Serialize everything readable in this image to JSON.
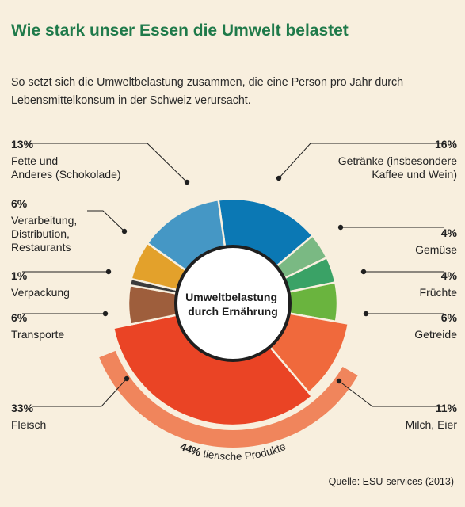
{
  "title": "Wie stark unser Essen die Umwelt belastet",
  "subtitle": "So setzt sich die Umweltbelastung zusammen, die eine Person pro Jahr durch Lebensmittelkonsum in der Schweiz verursacht.",
  "center_label": [
    "Umweltbelastung",
    "durch Ernährung"
  ],
  "animal_band": {
    "value": "44%",
    "label": "tierische Produkte",
    "color": "#f0855c"
  },
  "source": "Quelle: ESU-services (2013)",
  "chart_data": {
    "type": "pie",
    "title": "Umweltbelastung durch Ernährung",
    "unit": "%",
    "slices": [
      {
        "label": "Getränke (insbesondere Kaffee und Wein)",
        "display": "Getränke (insbesondere\nKaffee und Wein)",
        "value": 16,
        "color": "#0b78b4"
      },
      {
        "label": "Gemüse",
        "display": "Gemüse",
        "value": 4,
        "color": "#7ab983"
      },
      {
        "label": "Früchte",
        "display": "Früchte",
        "value": 4,
        "color": "#3aa266"
      },
      {
        "label": "Getreide",
        "display": "Getreide",
        "value": 6,
        "color": "#6ab43e"
      },
      {
        "label": "Milch, Eier",
        "display": "Milch, Eier",
        "value": 11,
        "color": "#f0693c"
      },
      {
        "label": "Fleisch",
        "display": "Fleisch",
        "value": 33,
        "color": "#ea4425"
      },
      {
        "label": "Transporte",
        "display": "Transporte",
        "value": 6,
        "color": "#9e5e3c"
      },
      {
        "label": "Verpackung",
        "display": "Verpackung",
        "value": 1,
        "color": "#3b3b3b"
      },
      {
        "label": "Verarbeitung, Distribution, Restaurants",
        "display": "Verarbeitung,\nDistribution,\nRestaurants",
        "value": 6,
        "color": "#e3a12b"
      },
      {
        "label": "Fette und Anderes (Schokolade)",
        "display": "Fette und\nAnderes (Schokolade)",
        "value": 13,
        "color": "#4597c5"
      }
    ]
  }
}
